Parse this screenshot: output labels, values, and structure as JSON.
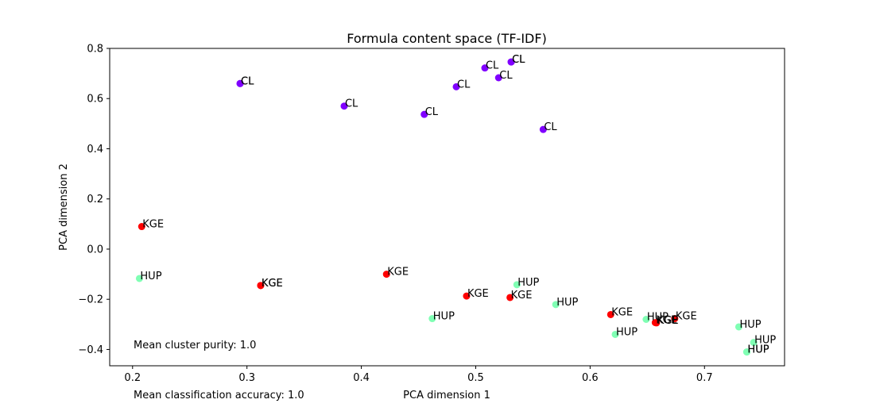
{
  "chart_data": {
    "type": "scatter",
    "title": "Formula content space (TF-IDF)",
    "xlabel": "PCA dimension 1",
    "ylabel": "PCA dimension 2",
    "xlim": [
      0.18,
      0.77
    ],
    "ylim": [
      -0.465,
      0.8
    ],
    "xticks": [
      "0.2",
      "0.3",
      "0.4",
      "0.5",
      "0.6",
      "0.7"
    ],
    "yticks": [
      "−0.4",
      "−0.2",
      "0.0",
      "0.2",
      "0.4",
      "0.6",
      "0.8"
    ],
    "grid": false,
    "class_colors": {
      "CL": "#8000ff",
      "KGE": "#ff0000",
      "HUP": "#80ffb4"
    },
    "points": [
      {
        "x": 0.294,
        "y": 0.66,
        "label": "CL"
      },
      {
        "x": 0.294,
        "y": 0.66,
        "label": "CL"
      },
      {
        "x": 0.385,
        "y": 0.57,
        "label": "CL"
      },
      {
        "x": 0.455,
        "y": 0.537,
        "label": "CL"
      },
      {
        "x": 0.483,
        "y": 0.647,
        "label": "CL"
      },
      {
        "x": 0.508,
        "y": 0.722,
        "label": "CL"
      },
      {
        "x": 0.52,
        "y": 0.683,
        "label": "CL"
      },
      {
        "x": 0.531,
        "y": 0.746,
        "label": "CL"
      },
      {
        "x": 0.531,
        "y": 0.746,
        "label": "CL"
      },
      {
        "x": 0.559,
        "y": 0.477,
        "label": "CL"
      },
      {
        "x": 0.208,
        "y": 0.09,
        "label": "KGE"
      },
      {
        "x": 0.312,
        "y": -0.145,
        "label": "KGE"
      },
      {
        "x": 0.312,
        "y": -0.145,
        "label": "KGE"
      },
      {
        "x": 0.422,
        "y": -0.1,
        "label": "KGE"
      },
      {
        "x": 0.492,
        "y": -0.187,
        "label": "KGE"
      },
      {
        "x": 0.53,
        "y": -0.193,
        "label": "KGE"
      },
      {
        "x": 0.618,
        "y": -0.261,
        "label": "KGE"
      },
      {
        "x": 0.657,
        "y": -0.293,
        "label": "KGE"
      },
      {
        "x": 0.658,
        "y": -0.294,
        "label": "KGE"
      },
      {
        "x": 0.674,
        "y": -0.277,
        "label": "KGE"
      },
      {
        "x": 0.206,
        "y": -0.117,
        "label": "HUP"
      },
      {
        "x": 0.462,
        "y": -0.277,
        "label": "HUP"
      },
      {
        "x": 0.536,
        "y": -0.142,
        "label": "HUP"
      },
      {
        "x": 0.57,
        "y": -0.221,
        "label": "HUP"
      },
      {
        "x": 0.622,
        "y": -0.34,
        "label": "HUP"
      },
      {
        "x": 0.649,
        "y": -0.28,
        "label": "HUP"
      },
      {
        "x": 0.73,
        "y": -0.31,
        "label": "HUP"
      },
      {
        "x": 0.743,
        "y": -0.372,
        "label": "HUP"
      },
      {
        "x": 0.737,
        "y": -0.41,
        "label": "HUP"
      },
      {
        "x": 0.737,
        "y": -0.41,
        "label": "HUP"
      }
    ],
    "annotations": {
      "purity": "Mean cluster purity: 1.0",
      "accuracy": "Mean classification accuracy: 1.0"
    }
  }
}
